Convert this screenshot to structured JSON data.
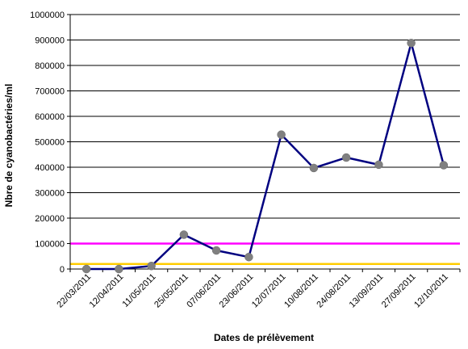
{
  "chart_data": {
    "type": "line",
    "xlabel": "Dates de prélèvement",
    "ylabel": "Nbre de cyanobactéries/ml",
    "ylim": [
      0,
      1000000
    ],
    "y_ticks": [
      "0",
      "100000",
      "200000",
      "300000",
      "400000",
      "500000",
      "600000",
      "700000",
      "800000",
      "900000",
      "1000000"
    ],
    "grid": "horizontal",
    "categories": [
      "22/03/2011",
      "12/04/2011",
      "11/05/2011",
      "25/05/2011",
      "07/06/2011",
      "23/06/2011",
      "12/07/2011",
      "10/08/2011",
      "24/08/2011",
      "13/09/2011",
      "27/09/2011",
      "12/10/2011"
    ],
    "series": [
      {
        "values": [
          0,
          0,
          12000,
          135000,
          73000,
          47000,
          528000,
          397000,
          438000,
          410000,
          888000,
          408000
        ],
        "color": "#000080",
        "marker_color": "#808080"
      }
    ],
    "reference_lines": [
      {
        "value": 100000,
        "color": "#ff00ff"
      },
      {
        "value": 20000,
        "color": "#ffcc00"
      }
    ]
  }
}
